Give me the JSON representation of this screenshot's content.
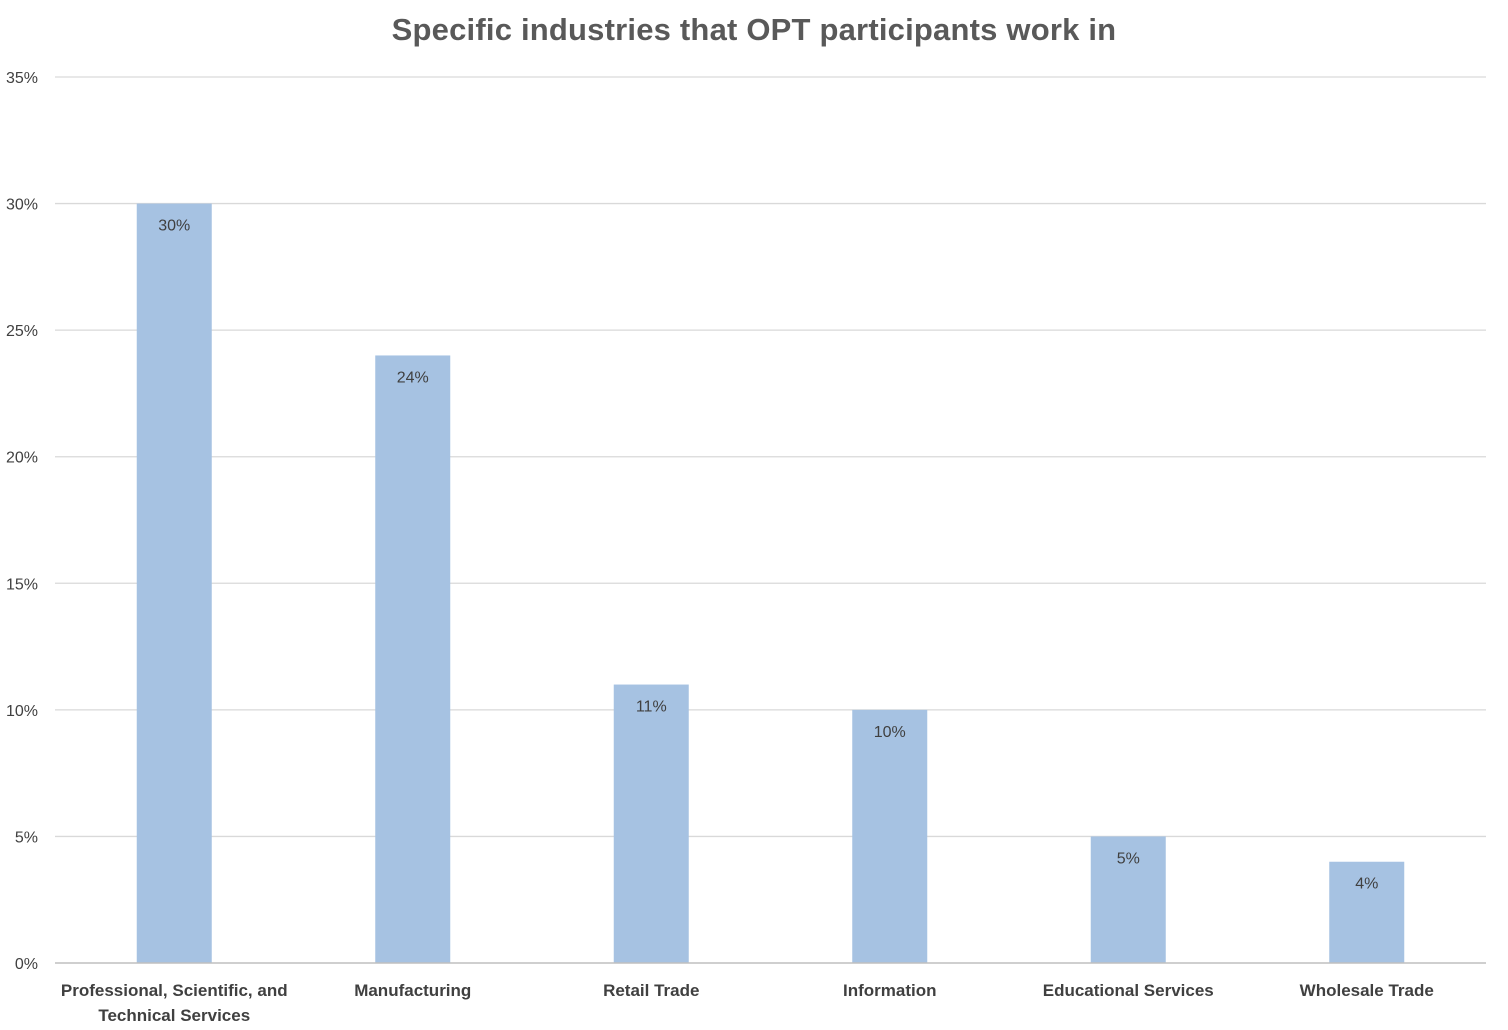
{
  "chart_data": {
    "type": "bar",
    "title": "Specific industries that OPT participants work in",
    "categories": [
      "Professional, Scientific, and Technical Services",
      "Manufacturing",
      "Retail Trade",
      "Information",
      "Educational Services",
      "Wholesale Trade"
    ],
    "category_lines": [
      [
        "Professional, Scientific, and",
        "Technical Services"
      ],
      [
        "Manufacturing"
      ],
      [
        "Retail Trade"
      ],
      [
        "Information"
      ],
      [
        "Educational Services"
      ],
      [
        "Wholesale Trade"
      ]
    ],
    "values": [
      30,
      24,
      11,
      10,
      5,
      4
    ],
    "data_labels": [
      "30%",
      "24%",
      "11%",
      "10%",
      "5%",
      "4%"
    ],
    "ylim": [
      0,
      35
    ],
    "yticks": [
      0,
      5,
      10,
      15,
      20,
      25,
      30,
      35
    ],
    "ytick_labels": [
      "0%",
      "5%",
      "10%",
      "15%",
      "20%",
      "25%",
      "30%",
      "35%"
    ],
    "xlabel": "",
    "ylabel": "",
    "grid": true,
    "legend": "none",
    "colors": {
      "bar": "#a6c2e2",
      "grid": "#d9d9d9",
      "axis": "#bfbfbf",
      "text": "#404040",
      "title": "#595959"
    }
  }
}
